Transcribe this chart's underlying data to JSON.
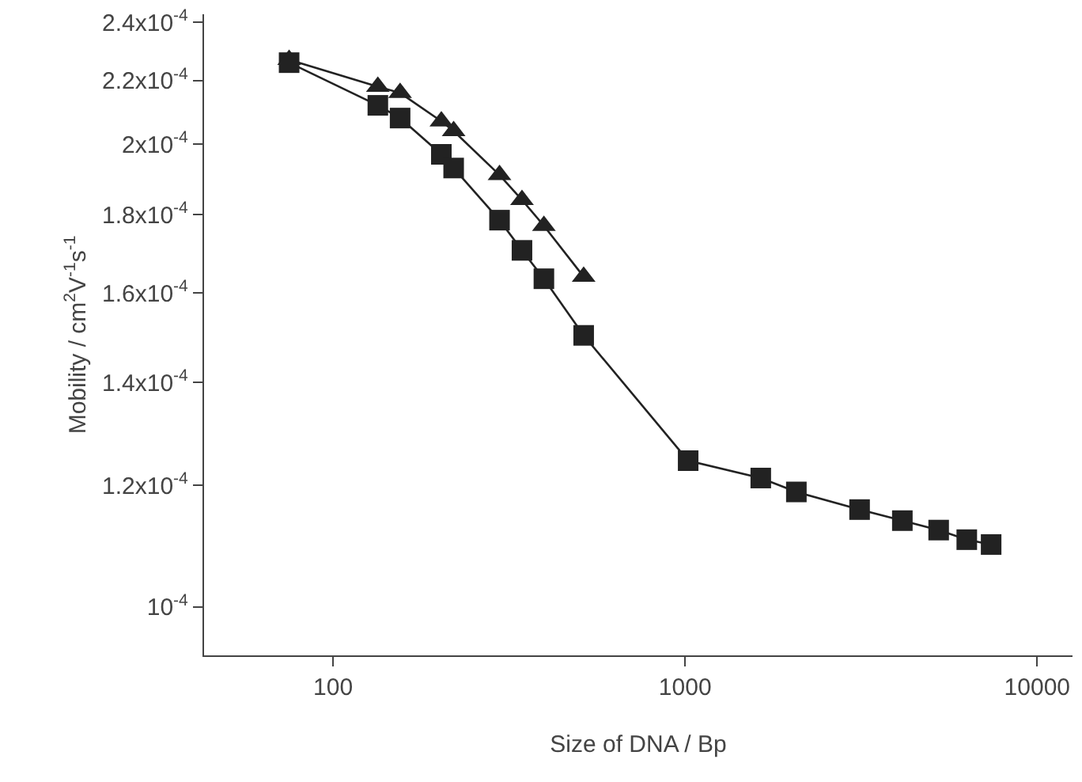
{
  "chart_data": {
    "type": "line",
    "xlabel": "Size of DNA / Bp",
    "ylabel": "Mobility / cm$^{2}$V$^{-1}$s$^{-1}$",
    "log": "xy",
    "grid": false,
    "xlim": [
      43,
      12600
    ],
    "ylim": [
      9.3e-05,
      0.000243
    ],
    "xticks": [
      100,
      1000,
      10000
    ],
    "yticks": [
      {
        "value": 0.0001,
        "label": "10$^{-4}$"
      },
      {
        "value": 0.00012,
        "label": "1.2x10$^{-4}$"
      },
      {
        "value": 0.00014,
        "label": "1.4x10$^{-4}$"
      },
      {
        "value": 0.00016,
        "label": "1.6x10$^{-4}$"
      },
      {
        "value": 0.00018,
        "label": "1.8x10$^{-4}$"
      },
      {
        "value": 0.0002,
        "label": "2x10$^{-4}$"
      },
      {
        "value": 0.00022,
        "label": "2.2x10$^{-4}$"
      },
      {
        "value": 0.00024,
        "label": "2.4x10$^{-4}$"
      }
    ],
    "series": [
      {
        "color": "#222222",
        "marker": "square",
        "line_style": "solid",
        "x": [
          75,
          134,
          155,
          203,
          220,
          297,
          344,
          397,
          515,
          1020,
          1640,
          2070,
          3130,
          4140,
          5250,
          6310,
          7400
        ],
        "values": [
          0.000226,
          0.000212,
          0.000208,
          0.000197,
          0.000193,
          0.0001785,
          0.0001706,
          0.0001635,
          0.0001502,
          0.0001245,
          0.0001213,
          0.0001188,
          0.0001157,
          0.0001138,
          0.0001122,
          0.0001106,
          0.0001098
        ]
      },
      {
        "color": "#222222",
        "marker": "triangle",
        "line_style": "solid",
        "x": [
          75,
          134,
          155,
          203,
          220,
          297,
          344,
          397,
          515
        ],
        "values": [
          0.000227,
          0.000218,
          0.000216,
          0.000207,
          0.000204,
          0.000191,
          0.000184,
          0.000177,
          0.000164
        ]
      }
    ]
  }
}
